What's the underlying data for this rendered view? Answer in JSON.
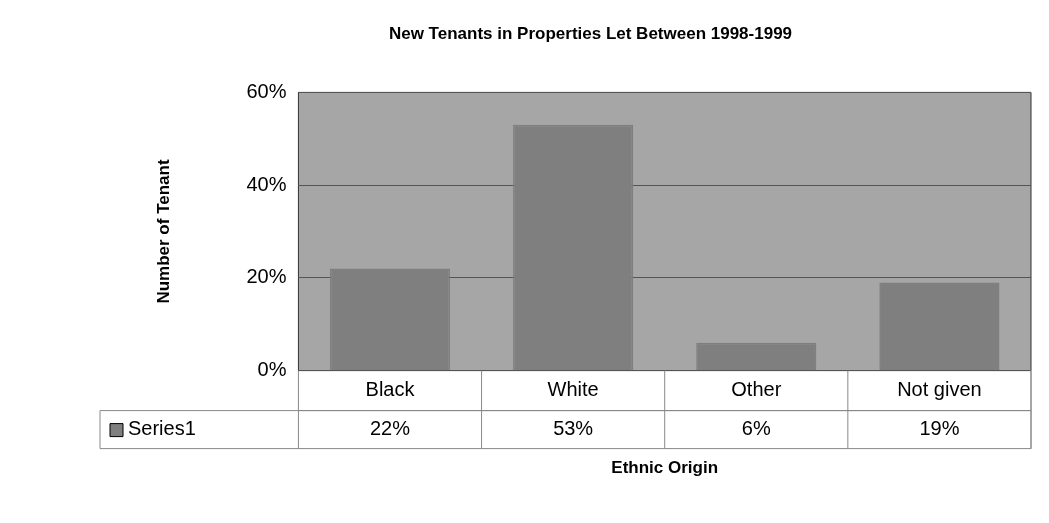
{
  "chart_data": {
    "type": "bar",
    "title": "New Tenants in Properties Let Between 1998-1999",
    "xlabel": "Ethnic Origin",
    "ylabel": "Number of Tenant",
    "categories": [
      "Black",
      "White",
      "Other",
      "Not given"
    ],
    "series": [
      {
        "name": "Series1",
        "color": "#7f7f7f",
        "values": [
          22,
          53,
          6,
          19
        ],
        "value_labels": [
          "22%",
          "53%",
          "6%",
          "19%"
        ]
      }
    ],
    "ylim": [
      0,
      60
    ],
    "yticks": [
      {
        "value": 0,
        "label": "0%"
      },
      {
        "value": 20,
        "label": "20%"
      },
      {
        "value": 40,
        "label": "40%"
      },
      {
        "value": 60,
        "label": "60%"
      }
    ],
    "grid": "y",
    "legend": "bottom"
  }
}
